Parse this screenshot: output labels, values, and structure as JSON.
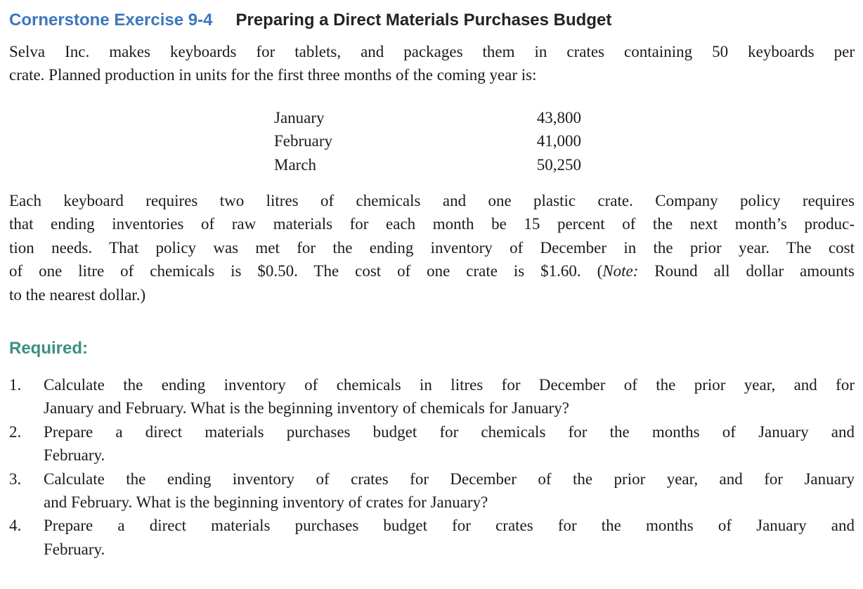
{
  "colors": {
    "accent_blue": "#3c77bd",
    "accent_teal": "#3a9181",
    "heading_black": "#232323",
    "body_black": "#1b1b1b",
    "page_bg": "#ffffff"
  },
  "header": {
    "exercise_label": "Cornerstone Exercise 9-4",
    "title": "Preparing a Direct Materials Purchases Budget"
  },
  "intro": {
    "lines": [
      "Selva Inc. makes keyboards for tablets, and packages them in crates containing 50 keyboards per",
      "crate. Planned production in units for the first three months of the coming year is:"
    ]
  },
  "production_table": {
    "rows": [
      {
        "month": "January",
        "units": "43,800"
      },
      {
        "month": "February",
        "units": "41,000"
      },
      {
        "month": "March",
        "units": "50,250"
      }
    ]
  },
  "details": {
    "lines": [
      "Each keyboard requires two litres of chemicals and one plastic crate. Company policy requires",
      "that ending inventories of raw materials for each month be 15 percent of the next month’s produc-",
      "tion needs. That policy was met for the ending inventory of December in the prior year. The cost"
    ],
    "note_line": {
      "pre": "of one litre of chemicals is $0.50. The cost of one crate is $1.60. (",
      "note": "Note:",
      "post": " Round all dollar amounts"
    },
    "last_line": "to the nearest dollar.)"
  },
  "required": {
    "label": "Required:",
    "items": [
      {
        "number": "1.",
        "lines": [
          "Calculate the ending inventory of chemicals in litres for December of the prior year, and for",
          "January and February. What is the beginning inventory of chemicals for January?"
        ]
      },
      {
        "number": "2.",
        "lines": [
          "Prepare a direct materials purchases budget for chemicals for the months of January and",
          "February."
        ]
      },
      {
        "number": "3.",
        "lines": [
          "Calculate the ending inventory of crates for December of the prior year, and for January",
          "and February. What is the beginning inventory of crates for January?"
        ]
      },
      {
        "number": "4.",
        "lines": [
          "Prepare a direct materials purchases budget for crates for the months of January and",
          "February."
        ]
      }
    ]
  }
}
